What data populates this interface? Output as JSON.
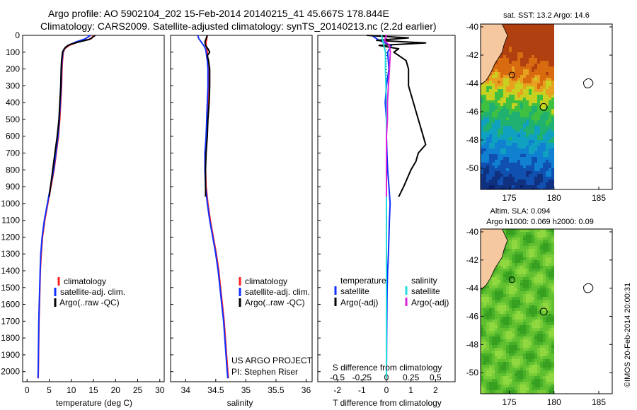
{
  "header": {
    "line1": "Argo profile: AO 5902104_202 15-Feb-2014 20140215_41 45.667S 178.844E",
    "line2": "Climatology: CARS2009. Satellite-adjusted climatology: synTS_20140213.nc (2.2d earlier)"
  },
  "colors": {
    "climatology": "#ff2020",
    "satellite": "#1030ff",
    "argo": "#000000",
    "sat_s": "#22dddd",
    "argo_s": "#dd22dd",
    "land": "#f5c8a0"
  },
  "depth_axis": {
    "ticks": [
      "0",
      "100",
      "200",
      "300",
      "400",
      "500",
      "600",
      "700",
      "800",
      "900",
      "1000",
      "1100",
      "1200",
      "1300",
      "1400",
      "1500",
      "1600",
      "1700",
      "1800",
      "1900",
      "2000"
    ]
  },
  "chart_data": [
    {
      "id": "temperature",
      "type": "line",
      "xlabel": "temperature (deg C)",
      "ylabel": "depth",
      "xlim": [
        -1,
        31
      ],
      "ylim": [
        2060,
        0
      ],
      "xticks": [
        "0",
        "5",
        "10",
        "15",
        "20",
        "25",
        "30"
      ],
      "xtick_values": [
        0,
        5,
        10,
        15,
        20,
        25,
        30
      ],
      "series": [
        {
          "name": "climatology",
          "color": "#ff2020",
          "depth": [
            0,
            20,
            40,
            60,
            80,
            100,
            150,
            200,
            300,
            400,
            500,
            600,
            700,
            800,
            900,
            1000,
            1100,
            1200,
            1300,
            1400,
            1500,
            1600,
            1700,
            1800,
            1900,
            2000,
            2040
          ],
          "values": [
            15.0,
            14.5,
            11.5,
            9.5,
            8.5,
            8.2,
            8.0,
            7.9,
            7.8,
            7.6,
            7.4,
            7.1,
            6.6,
            6.1,
            5.4,
            4.7,
            4.0,
            3.5,
            3.2,
            3.0,
            2.9,
            2.8,
            2.7,
            2.65,
            2.6,
            2.55,
            2.5
          ]
        },
        {
          "name": "satellite-adj. clim.",
          "color": "#1030ff",
          "depth": [
            0,
            20,
            40,
            60,
            80,
            100,
            150,
            200,
            300,
            400,
            500,
            600,
            700,
            800,
            900,
            1000,
            1100,
            1200,
            1300,
            1400,
            1500,
            1600,
            1700,
            1800,
            1900,
            2000,
            2040
          ],
          "values": [
            14.3,
            13.2,
            11.0,
            9.2,
            8.4,
            8.1,
            7.9,
            7.8,
            7.7,
            7.5,
            7.3,
            7.0,
            6.5,
            6.0,
            5.3,
            4.6,
            3.9,
            3.4,
            3.1,
            2.95,
            2.85,
            2.75,
            2.65,
            2.6,
            2.55,
            2.5,
            2.45
          ]
        },
        {
          "name": "Argo(..raw -QC)",
          "color": "#000000",
          "depth": [
            0,
            10,
            25,
            40,
            55,
            70,
            85,
            100,
            150,
            200,
            300,
            400,
            500,
            600,
            700,
            800,
            900,
            960
          ],
          "values": [
            15.4,
            14.9,
            14.0,
            11.6,
            9.6,
            8.7,
            8.3,
            8.0,
            7.8,
            7.7,
            7.6,
            7.4,
            7.2,
            6.8,
            6.3,
            5.8,
            5.3,
            5.0
          ]
        }
      ],
      "legend": [
        "climatology",
        "satellite-adj. clim.",
        "Argo(..raw -QC)"
      ]
    },
    {
      "id": "salinity",
      "type": "line",
      "xlabel": "salinity",
      "xlim": [
        33.75,
        36.1
      ],
      "ylim": [
        2060,
        0
      ],
      "xticks": [
        "34",
        "34.5",
        "35",
        "35.5",
        "36"
      ],
      "xtick_values": [
        34,
        34.5,
        35,
        35.5,
        36
      ],
      "series": [
        {
          "name": "climatology",
          "color": "#ff2020",
          "depth": [
            0,
            20,
            40,
            60,
            80,
            100,
            150,
            200,
            300,
            400,
            500,
            600,
            700,
            800,
            900,
            1000,
            1100,
            1200,
            1300,
            1400,
            1500,
            1600,
            1700,
            1800,
            1900,
            2000,
            2040
          ],
          "values": [
            34.36,
            34.35,
            34.34,
            34.34,
            34.35,
            34.36,
            34.37,
            34.38,
            34.38,
            34.37,
            34.36,
            34.35,
            34.33,
            34.33,
            34.34,
            34.37,
            34.41,
            34.46,
            34.51,
            34.55,
            34.58,
            34.61,
            34.64,
            34.66,
            34.68,
            34.7,
            34.71
          ]
        },
        {
          "name": "satellite-adj. clim.",
          "color": "#1030ff",
          "depth": [
            0,
            20,
            40,
            60,
            80,
            100,
            150,
            200,
            300,
            400,
            500,
            600,
            700,
            800,
            900,
            1000,
            1100,
            1200,
            1300,
            1400,
            1500,
            1600,
            1700,
            1800,
            1900,
            2000,
            2040
          ],
          "values": [
            34.2,
            34.22,
            34.26,
            34.3,
            34.33,
            34.34,
            34.36,
            34.37,
            34.37,
            34.36,
            34.35,
            34.34,
            34.32,
            34.32,
            34.33,
            34.36,
            34.4,
            34.45,
            34.5,
            34.54,
            34.57,
            34.6,
            34.63,
            34.65,
            34.67,
            34.69,
            34.7
          ]
        },
        {
          "name": "Argo(..raw -QC)",
          "color": "#000000",
          "depth": [
            0,
            20,
            40,
            60,
            80,
            100,
            120,
            150,
            200,
            300,
            400,
            500,
            600,
            700,
            800,
            900,
            960
          ],
          "values": [
            34.36,
            34.34,
            34.32,
            34.33,
            34.37,
            34.4,
            34.36,
            34.38,
            34.4,
            34.4,
            34.39,
            34.37,
            34.36,
            34.34,
            34.33,
            34.33,
            34.33
          ]
        }
      ],
      "legend": [
        "climatology",
        "satellite-adj. clim.",
        "Argo(..raw -QC)"
      ],
      "annotation": [
        "US ARGO PROJECT",
        "PI: Stephen Riser"
      ]
    },
    {
      "id": "difference",
      "type": "line",
      "xlabel": "T difference from climatology",
      "top_label": "S difference from climatology",
      "xlim": [
        -2.8,
        2.8
      ],
      "ylim": [
        2060,
        0
      ],
      "xticks": [
        "-2",
        "-1",
        "0",
        "1",
        "2"
      ],
      "xtick_values": [
        -2,
        -1,
        0,
        1,
        2
      ],
      "s_ticks": [
        "-0.5",
        "-0.25",
        "0",
        "0.25",
        "0.5"
      ],
      "s_tick_values": [
        -0.5,
        -0.25,
        0,
        0.25,
        0.5
      ],
      "series": [
        {
          "name": "temperature satellite",
          "color": "#1030ff",
          "units": "T",
          "depth": [
            0,
            30,
            60,
            100,
            200,
            300,
            400,
            500,
            600,
            700,
            800,
            900,
            1000,
            1100,
            1200,
            1300,
            1400,
            1500,
            1600,
            1800,
            2040
          ],
          "values": [
            -0.6,
            -0.3,
            0.2,
            0.05,
            0.1,
            0.0,
            -0.05,
            0.0,
            0.0,
            0.02,
            0.05,
            0.1,
            0.15,
            0.12,
            0.1,
            0.08,
            0.05,
            0.03,
            0.02,
            0.01,
            0.0
          ]
        },
        {
          "name": "temperature Argo(-adj)",
          "color": "#000000",
          "units": "T",
          "depth": [
            0,
            15,
            30,
            45,
            60,
            80,
            100,
            150,
            200,
            300,
            400,
            500,
            600,
            650,
            700,
            750,
            800,
            900,
            960
          ],
          "values": [
            -0.8,
            0.9,
            -0.4,
            1.6,
            -0.3,
            0.5,
            0.3,
            0.8,
            0.9,
            0.9,
            1.1,
            1.3,
            1.5,
            1.6,
            1.3,
            1.2,
            1.0,
            0.7,
            0.5
          ]
        },
        {
          "name": "salinity satellite",
          "color": "#22dddd",
          "units": "S",
          "depth": [
            0,
            50,
            100,
            200,
            300,
            400,
            500,
            600,
            800,
            1000,
            1200,
            1400,
            1600,
            1800,
            2040
          ],
          "values": [
            -0.05,
            -0.03,
            -0.01,
            -0.01,
            -0.005,
            0.0,
            0.0,
            0.0,
            0.0,
            0.0,
            0.0,
            0.0,
            0.0,
            0.0,
            0.0
          ]
        },
        {
          "name": "salinity Argo(-adj)",
          "color": "#dd22dd",
          "units": "S",
          "depth": [
            0,
            30,
            60,
            100,
            200,
            300,
            400,
            500,
            600,
            700,
            800,
            900,
            960
          ],
          "values": [
            0.0,
            -0.02,
            0.03,
            0.04,
            0.03,
            0.02,
            0.01,
            0.01,
            0.0,
            0.0,
            0.0,
            0.0,
            0.0
          ]
        }
      ],
      "legend_headers": [
        "temperature",
        "salinity"
      ],
      "legend": [
        "satellite",
        "Argo(-adj)",
        "satellite",
        "Argo(-adj)"
      ]
    },
    {
      "id": "sst-map",
      "type": "heatmap",
      "title": "sat. SST: 13.2 Argo: 14.6",
      "xticks": [
        "175",
        "180",
        "185"
      ],
      "xtick_values": [
        175,
        180,
        185
      ],
      "yticks": [
        "-40",
        "-42",
        "-44",
        "-46",
        "-48",
        "-50"
      ],
      "ytick_values": [
        -40,
        -42,
        -44,
        -46,
        -48,
        -50
      ],
      "xlim": [
        171.8,
        186.5
      ],
      "ylim": [
        -51.5,
        -39.8
      ],
      "float_position": [
        178.844,
        -45.667
      ]
    },
    {
      "id": "sla-map",
      "type": "heatmap",
      "title": "Altim. SLA: 0.094",
      "subtitle": "Argo h1000: 0.069 h2000: 0.09",
      "xticks": [
        "175",
        "180",
        "185"
      ],
      "xtick_values": [
        175,
        180,
        185
      ],
      "yticks": [
        "-40",
        "-42",
        "-44",
        "-46",
        "-48",
        "-50"
      ],
      "ytick_values": [
        -40,
        -42,
        -44,
        -46,
        -48,
        -50
      ],
      "xlim": [
        171.8,
        186.5
      ],
      "ylim": [
        -51.5,
        -39.8
      ],
      "float_position": [
        178.844,
        -45.667
      ]
    }
  ],
  "footer": {
    "stamp": "©IMOS 20-Feb-2014 20:00:31"
  }
}
